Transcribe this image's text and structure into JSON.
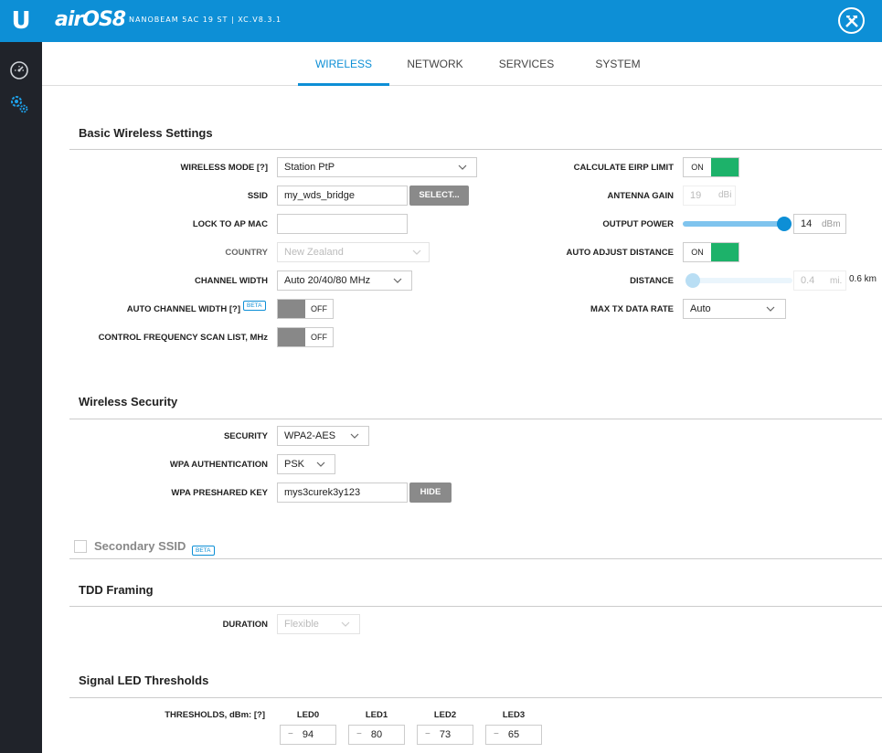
{
  "topbar": {
    "logo_letter": "U",
    "brand": "airOS",
    "brand_version": "8",
    "device": "NANOBEAM 5AC 19 ST | XC.V8.3.1",
    "tools_icon": "tools-icon",
    "accent": "#0d8fd6"
  },
  "sidebar": {
    "items": [
      {
        "icon": "dashboard-gauge-icon"
      },
      {
        "icon": "settings-gears-icon",
        "active": true
      }
    ]
  },
  "tabs": [
    {
      "label": "WIRELESS",
      "active": true
    },
    {
      "label": "NETWORK"
    },
    {
      "label": "SERVICES"
    },
    {
      "label": "SYSTEM"
    }
  ],
  "basic": {
    "title": "Basic Wireless Settings",
    "wireless_mode_label": "WIRELESS MODE [?]",
    "wireless_mode_value": "Station PtP",
    "ssid_label": "SSID",
    "ssid_value": "my_wds_bridge",
    "select_button": "SELECT...",
    "lock_label": "LOCK TO AP MAC",
    "lock_value": "",
    "country_label": "COUNTRY",
    "country_value": "New Zealand",
    "channel_width_label": "CHANNEL WIDTH",
    "channel_width_value": "Auto 20/40/80 MHz",
    "auto_channel_label": "AUTO CHANNEL WIDTH [?]",
    "auto_channel_beta": "BETA",
    "auto_channel_state": "OFF",
    "control_freq_label": "CONTROL FREQUENCY SCAN LIST, MHz",
    "control_freq_state": "OFF",
    "eirp_label": "CALCULATE EIRP LIMIT",
    "eirp_state": "ON",
    "antenna_gain_label": "ANTENNA GAIN",
    "antenna_gain_value": "19",
    "antenna_gain_unit": "dBi",
    "output_power_label": "OUTPUT POWER",
    "output_power_value": "14",
    "output_power_unit": "dBm",
    "auto_distance_label": "AUTO ADJUST DISTANCE",
    "auto_distance_state": "ON",
    "distance_label": "DISTANCE",
    "distance_value": "0.4",
    "distance_unit": "mi.",
    "distance_km": "0.6 km",
    "max_tx_label": "MAX TX DATA RATE",
    "max_tx_value": "Auto"
  },
  "security": {
    "title": "Wireless Security",
    "security_label": "SECURITY",
    "security_value": "WPA2-AES",
    "wpa_auth_label": "WPA AUTHENTICATION",
    "wpa_auth_value": "PSK",
    "psk_label": "WPA PRESHARED KEY",
    "psk_value": "mys3curek3y123",
    "hide_button": "HIDE"
  },
  "secondary": {
    "label": "Secondary SSID",
    "beta": "BETA",
    "checked": false
  },
  "tdd": {
    "title": "TDD Framing",
    "duration_label": "DURATION",
    "duration_value": "Flexible"
  },
  "led": {
    "title": "Signal LED Thresholds",
    "thresholds_label": "THRESHOLDS, dBm: [?]",
    "leds": [
      {
        "name": "LED0",
        "value": "94"
      },
      {
        "name": "LED1",
        "value": "80"
      },
      {
        "name": "LED2",
        "value": "73"
      },
      {
        "name": "LED3",
        "value": "65"
      }
    ]
  }
}
